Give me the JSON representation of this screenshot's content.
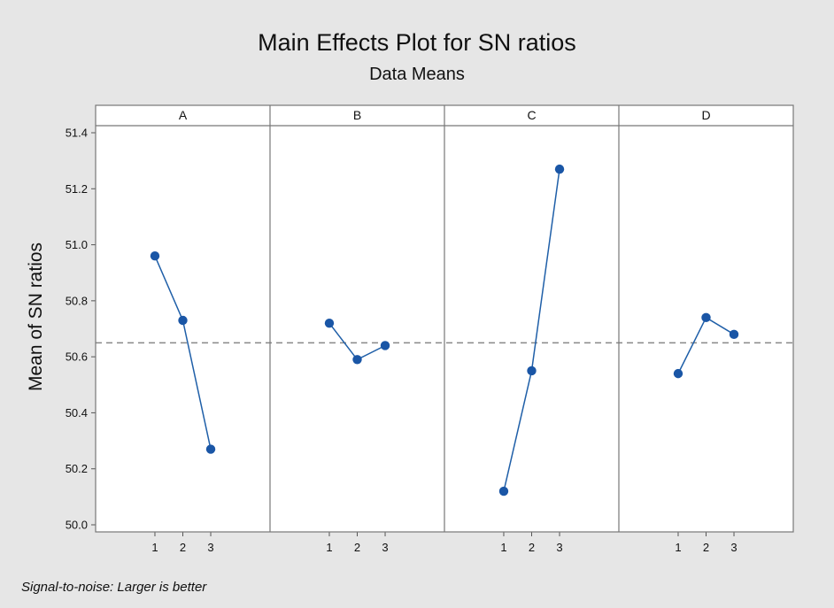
{
  "chart_data": {
    "type": "line",
    "title": "Main Effects Plot for SN ratios",
    "subtitle": "Data Means",
    "ylabel": "Mean of SN ratios",
    "footnote": "Signal-to-noise: Larger is better",
    "ylim": [
      50.0,
      51.4
    ],
    "y_ticks": [
      "50.0",
      "50.2",
      "50.4",
      "50.6",
      "50.8",
      "51.0",
      "51.2",
      "51.4"
    ],
    "x_levels": [
      "1",
      "2",
      "3"
    ],
    "mean_line": 50.65,
    "colors": {
      "series": "#1f5fa8",
      "marker": "#1a56a6",
      "mean_line": "#888888"
    },
    "panels": [
      {
        "name": "A",
        "values": [
          50.96,
          50.73,
          50.27
        ]
      },
      {
        "name": "B",
        "values": [
          50.72,
          50.59,
          50.64
        ]
      },
      {
        "name": "C",
        "values": [
          50.12,
          50.55,
          51.27
        ]
      },
      {
        "name": "D",
        "values": [
          50.54,
          50.74,
          50.68
        ]
      }
    ]
  }
}
